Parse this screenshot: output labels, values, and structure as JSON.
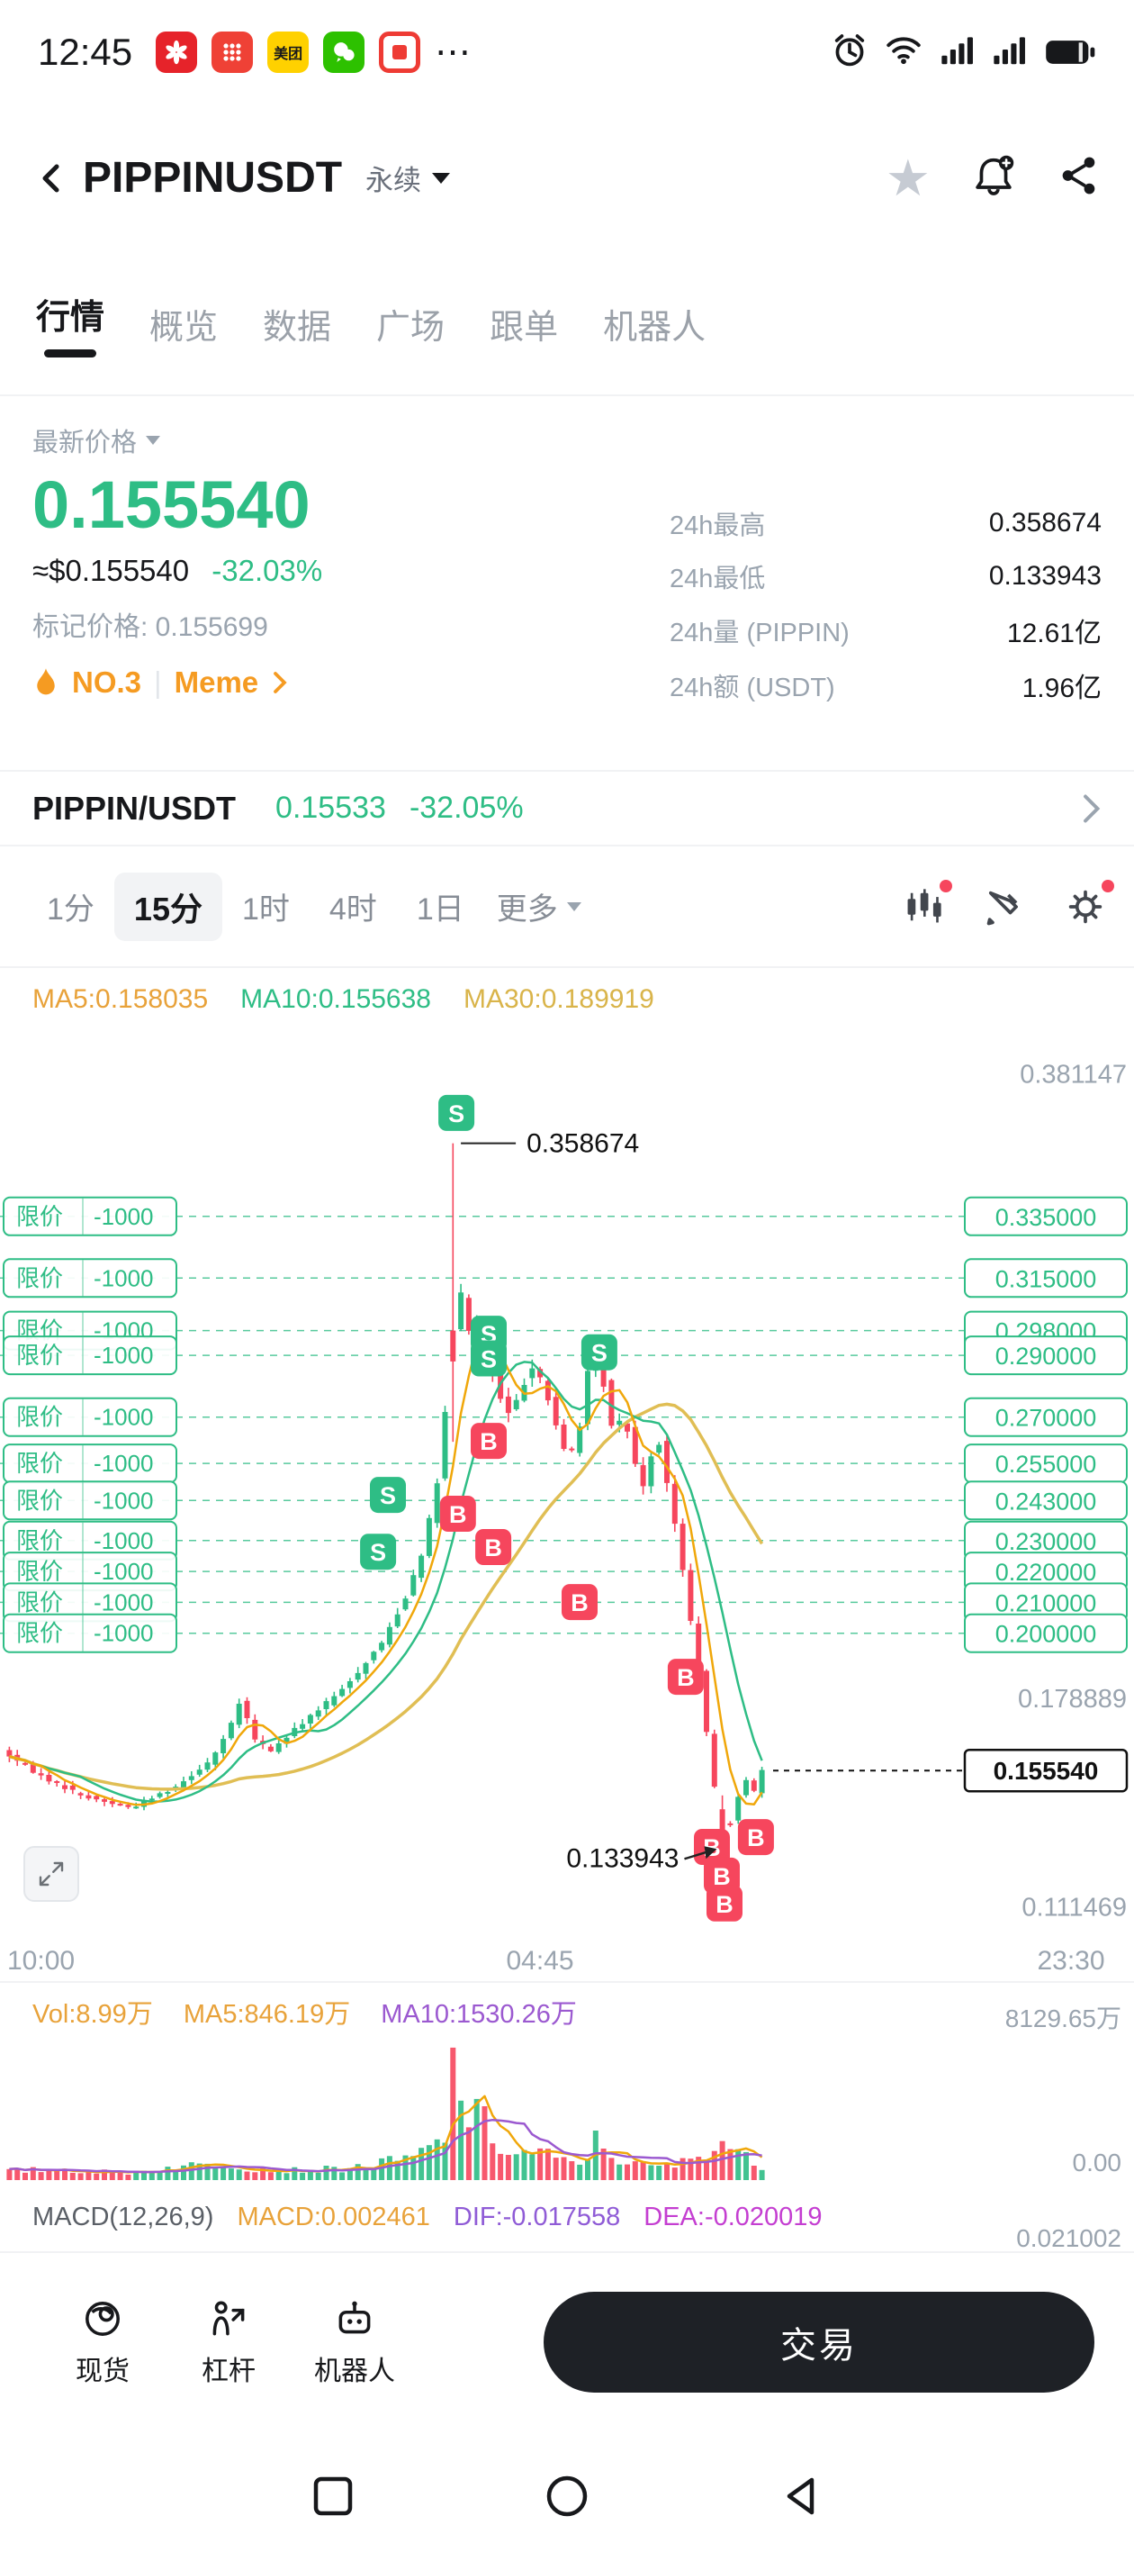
{
  "status_bar": {
    "time": "12:45",
    "meituan_label": "美团",
    "overflow": "⋯"
  },
  "header": {
    "title": "PIPPINUSDT",
    "contract_label": "永续"
  },
  "nav_tabs": {
    "items": [
      {
        "label": "行情",
        "active": true
      },
      {
        "label": "概览",
        "active": false
      },
      {
        "label": "数据",
        "active": false
      },
      {
        "label": "广场",
        "active": false
      },
      {
        "label": "跟单",
        "active": false
      },
      {
        "label": "机器人",
        "active": false
      }
    ]
  },
  "price_panel": {
    "price_label": "最新价格",
    "last_price": "0.155540",
    "approx_usd": "≈$0.155540",
    "change_pct": "-32.03%",
    "mark_price": "标记价格: 0.155699",
    "rank": "NO.3",
    "divider": "|",
    "category": "Meme",
    "stats": [
      {
        "label": "24h最高",
        "value": "0.358674"
      },
      {
        "label": "24h最低",
        "value": "0.133943"
      },
      {
        "label": "24h量 (PIPPIN)",
        "value": "12.61亿"
      },
      {
        "label": "24h额 (USDT)",
        "value": "1.96亿"
      }
    ]
  },
  "pair_row": {
    "pair": "PIPPIN/USDT",
    "price": "0.15533",
    "change": "-32.05%"
  },
  "timeframe_bar": {
    "items": [
      {
        "label": "1分",
        "active": false
      },
      {
        "label": "15分",
        "active": true
      },
      {
        "label": "1时",
        "active": false
      },
      {
        "label": "4时",
        "active": false
      },
      {
        "label": "1日",
        "active": false
      }
    ],
    "more_label": "更多"
  },
  "indicator_row": {
    "ma5": "MA5:0.158035",
    "ma10": "MA10:0.155638",
    "ma30": "MA30:0.189919"
  },
  "volume_row": {
    "vol": "Vol:8.99万",
    "ma5": "MA5:846.19万",
    "ma10": "MA10:1530.26万",
    "axis_max": "8129.65万",
    "axis_min": "0.00"
  },
  "macd_row": {
    "name": "MACD(12,26,9)",
    "macd": "MACD:0.002461",
    "dif": "DIF:-0.017558",
    "dea": "DEA:-0.020019",
    "axis_label": "0.021002"
  },
  "bottom_bar": {
    "items": [
      {
        "label": "现货"
      },
      {
        "label": "杠杆"
      },
      {
        "label": "机器人"
      }
    ],
    "trade_button": "交易"
  },
  "colors": {
    "up": "#2EBD85",
    "down": "#F6465D",
    "ma5": "#F0A70A",
    "ma10": "#2EBD85",
    "ma30": "#E0BE54",
    "volMa5": "#F0A70A",
    "volMa10": "#9B59D0",
    "axisText": "#9AA4AF"
  },
  "chart_data": {
    "type": "candlestick",
    "interval": "15分",
    "x_ticks": [
      "10:00",
      "04:45",
      "23:30"
    ],
    "y_axis_labels": [
      "0.381147",
      "0.178889",
      "0.111469"
    ],
    "price_range": {
      "min": 0.1034,
      "max": 0.395
    },
    "last_price": "0.155540",
    "high_label": "0.358674",
    "high_t": 0.593,
    "low_label": "0.133943",
    "low_t": 0.945,
    "num_candles": 96,
    "path_anchors": [
      [
        0,
        0.162
      ],
      [
        0.05,
        0.154
      ],
      [
        0.11,
        0.147
      ],
      [
        0.17,
        0.1435
      ],
      [
        0.23,
        0.1505
      ],
      [
        0.275,
        0.159
      ],
      [
        0.3,
        0.169
      ],
      [
        0.315,
        0.179
      ],
      [
        0.33,
        0.166
      ],
      [
        0.355,
        0.162
      ],
      [
        0.4,
        0.172
      ],
      [
        0.45,
        0.182
      ],
      [
        0.5,
        0.197
      ],
      [
        0.53,
        0.211
      ],
      [
        0.555,
        0.228
      ],
      [
        0.572,
        0.247
      ],
      [
        0.583,
        0.27
      ],
      [
        0.59,
        0.295
      ],
      [
        0.598,
        0.305
      ],
      [
        0.607,
        0.312
      ],
      [
        0.617,
        0.294
      ],
      [
        0.628,
        0.302
      ],
      [
        0.64,
        0.29
      ],
      [
        0.655,
        0.276
      ],
      [
        0.67,
        0.27
      ],
      [
        0.685,
        0.28
      ],
      [
        0.7,
        0.288
      ],
      [
        0.715,
        0.279
      ],
      [
        0.73,
        0.266
      ],
      [
        0.745,
        0.256
      ],
      [
        0.76,
        0.267
      ],
      [
        0.778,
        0.295
      ],
      [
        0.79,
        0.283
      ],
      [
        0.805,
        0.263
      ],
      [
        0.818,
        0.272
      ],
      [
        0.83,
        0.258
      ],
      [
        0.842,
        0.247
      ],
      [
        0.853,
        0.257
      ],
      [
        0.865,
        0.262
      ],
      [
        0.875,
        0.249
      ],
      [
        0.887,
        0.233
      ],
      [
        0.898,
        0.217
      ],
      [
        0.91,
        0.198
      ],
      [
        0.922,
        0.178
      ],
      [
        0.932,
        0.158
      ],
      [
        0.94,
        0.146
      ],
      [
        0.948,
        0.139
      ],
      [
        0.955,
        0.136
      ],
      [
        0.963,
        0.143
      ],
      [
        0.972,
        0.15
      ],
      [
        0.982,
        0.154
      ],
      [
        0.99,
        0.1485
      ],
      [
        1,
        0.1553
      ]
    ],
    "candle_overrides": [
      {
        "t": 0.593,
        "open": 0.298,
        "close": 0.288,
        "high": 0.358674,
        "low": 0.262
      },
      {
        "t": 0.945,
        "open": 0.143,
        "close": 0.136,
        "high": 0.1475,
        "low": 0.133943
      }
    ],
    "order_lines": [
      "0.335000",
      "0.315000",
      "0.298000",
      "0.290000",
      "0.270000",
      "0.255000",
      "0.243000",
      "0.230000",
      "0.220000",
      "0.210000",
      "0.200000"
    ],
    "order_tag": {
      "type": "限价",
      "amount": "-1000"
    },
    "markers": [
      {
        "side": "S",
        "t": 0.593,
        "price": 0.3685
      },
      {
        "side": "S",
        "t": 0.6355,
        "price": 0.297
      },
      {
        "side": "S",
        "t": 0.6355,
        "price": 0.289
      },
      {
        "side": "S",
        "t": 0.781,
        "price": 0.291
      },
      {
        "side": "S",
        "t": 0.503,
        "price": 0.2448
      },
      {
        "side": "S",
        "t": 0.49,
        "price": 0.2264
      },
      {
        "side": "B",
        "t": 0.6355,
        "price": 0.2623
      },
      {
        "side": "B",
        "t": 0.595,
        "price": 0.2387
      },
      {
        "side": "B",
        "t": 0.6415,
        "price": 0.2279
      },
      {
        "side": "B",
        "t": 0.755,
        "price": 0.2101
      },
      {
        "side": "B",
        "t": 0.8946,
        "price": 0.1859
      },
      {
        "side": "B",
        "t": 0.929,
        "price": 0.1308
      },
      {
        "side": "B",
        "t": 0.9869,
        "price": 0.134
      },
      {
        "side": "B",
        "t": 0.942,
        "price": 0.1215
      },
      {
        "side": "B",
        "t": 0.9456,
        "price": 0.1125
      }
    ],
    "volume_anchors": [
      [
        0,
        520
      ],
      [
        0.07,
        680
      ],
      [
        0.15,
        430
      ],
      [
        0.22,
        780
      ],
      [
        0.29,
        1050
      ],
      [
        0.33,
        700
      ],
      [
        0.4,
        580
      ],
      [
        0.47,
        820
      ],
      [
        0.54,
        1400
      ],
      [
        0.58,
        2600
      ],
      [
        0.593,
        8129
      ],
      [
        0.61,
        3400
      ],
      [
        0.625,
        3900
      ],
      [
        0.645,
        2300
      ],
      [
        0.67,
        1500
      ],
      [
        0.7,
        1800
      ],
      [
        0.73,
        1150
      ],
      [
        0.755,
        950
      ],
      [
        0.778,
        2500
      ],
      [
        0.8,
        1400
      ],
      [
        0.83,
        950
      ],
      [
        0.86,
        800
      ],
      [
        0.885,
        950
      ],
      [
        0.905,
        1350
      ],
      [
        0.925,
        1900
      ],
      [
        0.94,
        2450
      ],
      [
        0.955,
        2050
      ],
      [
        0.968,
        1500
      ],
      [
        0.982,
        1050
      ],
      [
        1,
        880
      ]
    ],
    "volume_max": 8129.65
  }
}
